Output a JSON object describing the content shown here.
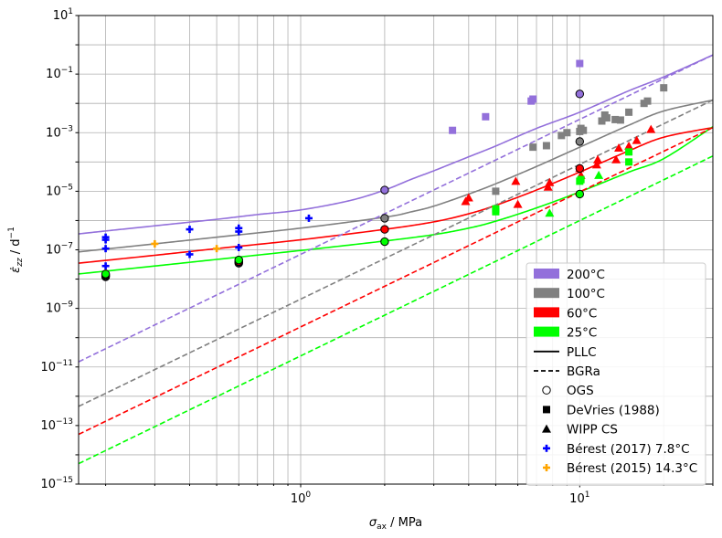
{
  "chart_data": {
    "type": "scatter",
    "title": "",
    "xlabel": {
      "main": "σ",
      "sub": "ax",
      "rest": " / MPa"
    },
    "ylabel": {
      "main": "ε̇",
      "sub": "zz",
      "rest": " / d",
      "sup": "−1"
    },
    "x_scale": "log",
    "y_scale": "log",
    "xlim": [
      0.16,
      30
    ],
    "ylim": [
      1e-15,
      10
    ],
    "grid": true,
    "legend_position": "lower-right",
    "x_tick_labels": [
      {
        "value": 1,
        "base": "10",
        "exp": "0"
      },
      {
        "value": 10,
        "base": "10",
        "exp": "1"
      }
    ],
    "y_tick_labels": [
      {
        "value": 1e-15,
        "base": "10",
        "exp": "−15"
      },
      {
        "value": 1e-13,
        "base": "10",
        "exp": "−13"
      },
      {
        "value": 1e-11,
        "base": "10",
        "exp": "−11"
      },
      {
        "value": 1e-09,
        "base": "10",
        "exp": "−9"
      },
      {
        "value": 1e-07,
        "base": "10",
        "exp": "−7"
      },
      {
        "value": 1e-05,
        "base": "10",
        "exp": "−5"
      },
      {
        "value": 0.001,
        "base": "10",
        "exp": "−3"
      },
      {
        "value": 0.1,
        "base": "10",
        "exp": "−1"
      },
      {
        "value": 10,
        "base": "10",
        "exp": "1"
      }
    ],
    "temperatures": [
      {
        "name": "200°C",
        "color": "#9370DB"
      },
      {
        "name": "100°C",
        "color": "#808080"
      },
      {
        "name": "60°C",
        "color": "#FF0000"
      },
      {
        "name": "25°C",
        "color": "#00FF00"
      }
    ],
    "line_styles": [
      {
        "name": "PLLC",
        "dash": "solid"
      },
      {
        "name": "BGRa",
        "dash": "dashed"
      }
    ],
    "marker_legend": [
      {
        "name": "OGS",
        "marker": "circle-open",
        "color": "#000000"
      },
      {
        "name": "DeVries (1988)",
        "marker": "square",
        "color": "#000000"
      },
      {
        "name": "WIPP CS",
        "marker": "triangle",
        "color": "#000000"
      },
      {
        "name": "Bérest (2017) 7.8°C",
        "marker": "plus",
        "color": "#0000FF"
      },
      {
        "name": "Bérest (2015) 14.3°C",
        "marker": "plus",
        "color": "#FFA500"
      }
    ],
    "curves": [
      {
        "temperature": "200°C",
        "model": "PLLC",
        "color": "#9370DB",
        "dash": "solid",
        "x": [
          0.16,
          0.2,
          0.3,
          0.5,
          0.7,
          1,
          1.5,
          2,
          2.5,
          3,
          4,
          5,
          7,
          10,
          15,
          20,
          30
        ],
        "y": [
          3.5e-07,
          4.4e-07,
          6.6e-07,
          1.1e-06,
          1.6e-06,
          2.3e-06,
          4.8e-06,
          1.1e-05,
          2.6e-05,
          5e-05,
          0.00015,
          0.00035,
          0.0014,
          0.005,
          0.027,
          0.08,
          0.45
        ]
      },
      {
        "temperature": "100°C",
        "model": "PLLC",
        "color": "#808080",
        "dash": "solid",
        "x": [
          0.16,
          0.3,
          0.5,
          1,
          2,
          2.5,
          3,
          4,
          5,
          7,
          10,
          15,
          20,
          30
        ],
        "y": [
          8.5e-08,
          1.6e-07,
          2.7e-07,
          5.5e-07,
          1.3e-06,
          2e-06,
          3.1e-06,
          8e-06,
          1.8e-05,
          7e-05,
          0.00032,
          0.0018,
          0.0055,
          0.013
        ]
      },
      {
        "temperature": "60°C",
        "model": "PLLC",
        "color": "#FF0000",
        "dash": "solid",
        "x": [
          0.16,
          0.3,
          0.5,
          1,
          2,
          3,
          4,
          5,
          7,
          10,
          15,
          20,
          30
        ],
        "y": [
          3.5e-08,
          6.5e-08,
          1.1e-07,
          2.2e-07,
          5e-07,
          9e-07,
          1.7e-06,
          3.3e-06,
          1.1e-05,
          4.5e-05,
          0.00024,
          0.0007,
          0.0015
        ]
      },
      {
        "temperature": "25°C",
        "model": "PLLC",
        "color": "#00FF00",
        "dash": "solid",
        "x": [
          0.16,
          0.3,
          0.5,
          1,
          2,
          3,
          4,
          5,
          7,
          10,
          15,
          20,
          30
        ],
        "y": [
          1.5e-08,
          2.8e-08,
          4.7e-08,
          9.5e-08,
          2e-07,
          3.3e-07,
          5.5e-07,
          9.5e-07,
          2.7e-06,
          9.5e-06,
          4.5e-05,
          0.00013,
          0.0016
        ]
      },
      {
        "temperature": "200°C",
        "model": "BGRa",
        "color": "#9370DB",
        "dash": "dashed",
        "x": [
          0.16,
          30
        ],
        "y": [
          1.5e-11,
          0.45
        ]
      },
      {
        "temperature": "100°C",
        "model": "BGRa",
        "color": "#808080",
        "dash": "dashed",
        "x": [
          0.16,
          30
        ],
        "y": [
          4.5e-13,
          0.013
        ]
      },
      {
        "temperature": "60°C",
        "model": "BGRa",
        "color": "#FF0000",
        "dash": "dashed",
        "x": [
          0.16,
          30
        ],
        "y": [
          5e-14,
          0.0015
        ]
      },
      {
        "temperature": "25°C",
        "model": "BGRa",
        "color": "#00FF00",
        "dash": "dashed",
        "x": [
          0.16,
          30
        ],
        "y": [
          5e-15,
          0.00016
        ]
      }
    ],
    "series": [
      {
        "dataset": "DeVries (1988)",
        "temperature": "200°C",
        "marker": "square",
        "color": "#9370DB",
        "x": [
          3.5,
          4.6,
          6.7,
          6.8,
          10
        ],
        "y": [
          0.0012,
          0.0035,
          0.012,
          0.014,
          0.23
        ]
      },
      {
        "dataset": "DeVries (1988)",
        "temperature": "100°C",
        "marker": "square",
        "color": "#808080",
        "x": [
          5,
          6.8,
          7.6,
          8.6,
          9,
          10,
          10.1,
          10.3,
          12,
          12.3,
          12.5,
          13.4,
          14,
          15,
          17,
          17.5,
          20
        ],
        "y": [
          1e-05,
          0.00032,
          0.00036,
          0.0008,
          0.001,
          0.0011,
          0.0014,
          0.0012,
          0.0025,
          0.004,
          0.0032,
          0.0028,
          0.0027,
          0.005,
          0.01,
          0.012,
          0.034
        ]
      },
      {
        "dataset": "WIPP CS",
        "temperature": "60°C",
        "marker": "triangle",
        "color": "#FF0000",
        "x": [
          3.9,
          4.0,
          5.9,
          6.0,
          7.7,
          7.8,
          10,
          10.1,
          11.5,
          11.6,
          13.5,
          13.8,
          15,
          16,
          18
        ],
        "y": [
          4.5e-06,
          6e-06,
          2.2e-05,
          3.6e-06,
          1.4e-05,
          2e-05,
          6e-05,
          3.5e-05,
          8e-05,
          0.00012,
          0.00012,
          0.0003,
          0.00035,
          0.00055,
          0.0013
        ]
      },
      {
        "dataset": "WIPP CS",
        "temperature": "25°C",
        "marker": "triangle",
        "color": "#00FF00",
        "x": [
          7.8,
          11.7
        ],
        "y": [
          1.8e-06,
          3.5e-05
        ]
      },
      {
        "dataset": "DeVries (1988)",
        "temperature": "25°C",
        "marker": "square",
        "color": "#00FF00",
        "x": [
          5,
          5,
          10,
          10.1,
          15,
          15
        ],
        "y": [
          2.5e-06,
          2e-06,
          2.2e-05,
          2.5e-05,
          0.0001,
          0.00022
        ]
      },
      {
        "dataset": "Bérest (2017) 7.8°C",
        "temperature": "",
        "marker": "plus",
        "color": "#0000FF",
        "x": [
          0.2,
          0.2,
          0.2,
          0.2,
          0.4,
          0.4,
          0.6,
          0.6,
          0.6,
          1.07
        ],
        "y": [
          2.7e-07,
          2.2e-07,
          1.1e-07,
          2.8e-08,
          5e-07,
          7e-08,
          5.5e-07,
          4.2e-07,
          1.2e-07,
          1.2e-06
        ]
      },
      {
        "dataset": "Bérest (2015) 14.3°C",
        "temperature": "",
        "marker": "plus",
        "color": "#FFA500",
        "x": [
          0.2,
          0.3,
          0.5
        ],
        "y": [
          1.6e-08,
          1.6e-07,
          1.1e-07
        ]
      },
      {
        "dataset": "OGS",
        "temperature": "200°C",
        "marker": "circle-open",
        "color": "#9370DB",
        "x": [
          0.2,
          0.6,
          2,
          10
        ],
        "y": [
          1.2e-08,
          3.5e-08,
          1.1e-05,
          0.021
        ]
      },
      {
        "dataset": "OGS",
        "temperature": "100°C",
        "marker": "circle-open",
        "color": "#808080",
        "x": [
          0.2,
          0.6,
          2,
          10
        ],
        "y": [
          1.3e-08,
          3.8e-08,
          1.2e-06,
          0.0005
        ]
      },
      {
        "dataset": "OGS",
        "temperature": "60°C",
        "marker": "circle-open",
        "color": "#FF0000",
        "x": [
          0.2,
          0.6,
          2,
          10
        ],
        "y": [
          1.4e-08,
          4e-08,
          5e-07,
          6e-05
        ]
      },
      {
        "dataset": "OGS",
        "temperature": "25°C",
        "marker": "circle-open",
        "color": "#00FF00",
        "x": [
          0.2,
          0.6,
          2,
          10
        ],
        "y": [
          1.5e-08,
          4.5e-08,
          1.9e-07,
          8e-06
        ]
      }
    ]
  }
}
